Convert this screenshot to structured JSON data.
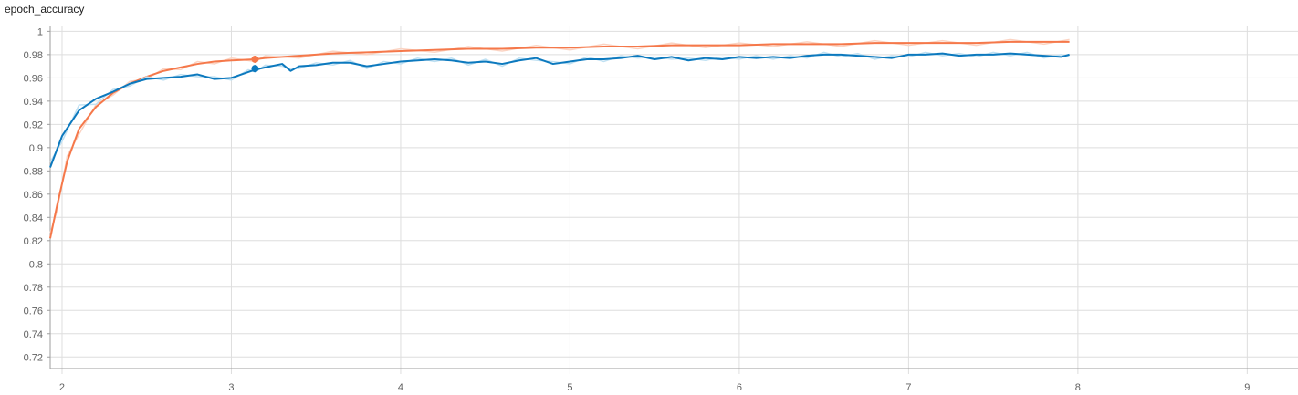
{
  "chart_data": {
    "type": "line",
    "title": "epoch_accuracy",
    "xlabel": "",
    "ylabel": "",
    "xlim": [
      1.93,
      9.3
    ],
    "ylim": [
      0.71,
      1.005
    ],
    "x_ticks": [
      "2",
      "3",
      "4",
      "5",
      "6",
      "7",
      "8",
      "9"
    ],
    "y_ticks": [
      "0.72",
      "0.74",
      "0.76",
      "0.78",
      "0.8",
      "0.82",
      "0.84",
      "0.86",
      "0.88",
      "0.9",
      "0.92",
      "0.94",
      "0.96",
      "0.98",
      "1"
    ],
    "grid": true,
    "legend": "none",
    "series": [
      {
        "color": "#f5784a",
        "raw_color": "#fbd3c2",
        "x": [
          1.93,
          1.97,
          2.03,
          2.1,
          2.2,
          2.3,
          2.4,
          2.5,
          2.6,
          2.7,
          2.8,
          2.9,
          3.0,
          3.14,
          3.2,
          3.4,
          3.6,
          3.8,
          4.0,
          4.2,
          4.4,
          4.6,
          4.8,
          5.0,
          5.2,
          5.4,
          5.6,
          5.8,
          6.0,
          6.2,
          6.4,
          6.6,
          6.8,
          7.0,
          7.2,
          7.4,
          7.6,
          7.8,
          7.95
        ],
        "y": [
          0.822,
          0.85,
          0.888,
          0.916,
          0.935,
          0.947,
          0.955,
          0.961,
          0.966,
          0.969,
          0.972,
          0.974,
          0.975,
          0.976,
          0.977,
          0.979,
          0.981,
          0.982,
          0.983,
          0.984,
          0.985,
          0.985,
          0.986,
          0.986,
          0.987,
          0.987,
          0.988,
          0.988,
          0.988,
          0.989,
          0.989,
          0.989,
          0.99,
          0.99,
          0.99,
          0.99,
          0.991,
          0.991,
          0.991
        ],
        "highlight": {
          "x": 3.14,
          "y": 0.976
        }
      },
      {
        "color": "#0c79be",
        "raw_color": "#bfe0f2",
        "x": [
          1.93,
          2.0,
          2.1,
          2.2,
          2.3,
          2.4,
          2.5,
          2.6,
          2.7,
          2.8,
          2.9,
          3.0,
          3.1,
          3.14,
          3.2,
          3.3,
          3.35,
          3.4,
          3.5,
          3.6,
          3.7,
          3.8,
          3.9,
          4.0,
          4.1,
          4.2,
          4.3,
          4.4,
          4.5,
          4.6,
          4.7,
          4.8,
          4.9,
          5.0,
          5.1,
          5.2,
          5.3,
          5.4,
          5.5,
          5.6,
          5.7,
          5.8,
          5.9,
          6.0,
          6.1,
          6.2,
          6.3,
          6.4,
          6.5,
          6.6,
          6.7,
          6.8,
          6.9,
          7.0,
          7.1,
          7.2,
          7.3,
          7.4,
          7.5,
          7.6,
          7.7,
          7.8,
          7.9,
          7.95
        ],
        "y": [
          0.883,
          0.91,
          0.932,
          0.942,
          0.948,
          0.955,
          0.959,
          0.96,
          0.961,
          0.963,
          0.959,
          0.96,
          0.965,
          0.967,
          0.969,
          0.972,
          0.966,
          0.97,
          0.971,
          0.973,
          0.973,
          0.97,
          0.972,
          0.974,
          0.975,
          0.976,
          0.975,
          0.973,
          0.974,
          0.972,
          0.975,
          0.977,
          0.972,
          0.974,
          0.976,
          0.976,
          0.977,
          0.979,
          0.976,
          0.978,
          0.975,
          0.977,
          0.976,
          0.978,
          0.977,
          0.978,
          0.977,
          0.979,
          0.98,
          0.98,
          0.979,
          0.978,
          0.977,
          0.98,
          0.98,
          0.981,
          0.979,
          0.98,
          0.98,
          0.981,
          0.98,
          0.979,
          0.978,
          0.98
        ],
        "highlight": {
          "x": 3.14,
          "y": 0.968
        }
      }
    ]
  }
}
